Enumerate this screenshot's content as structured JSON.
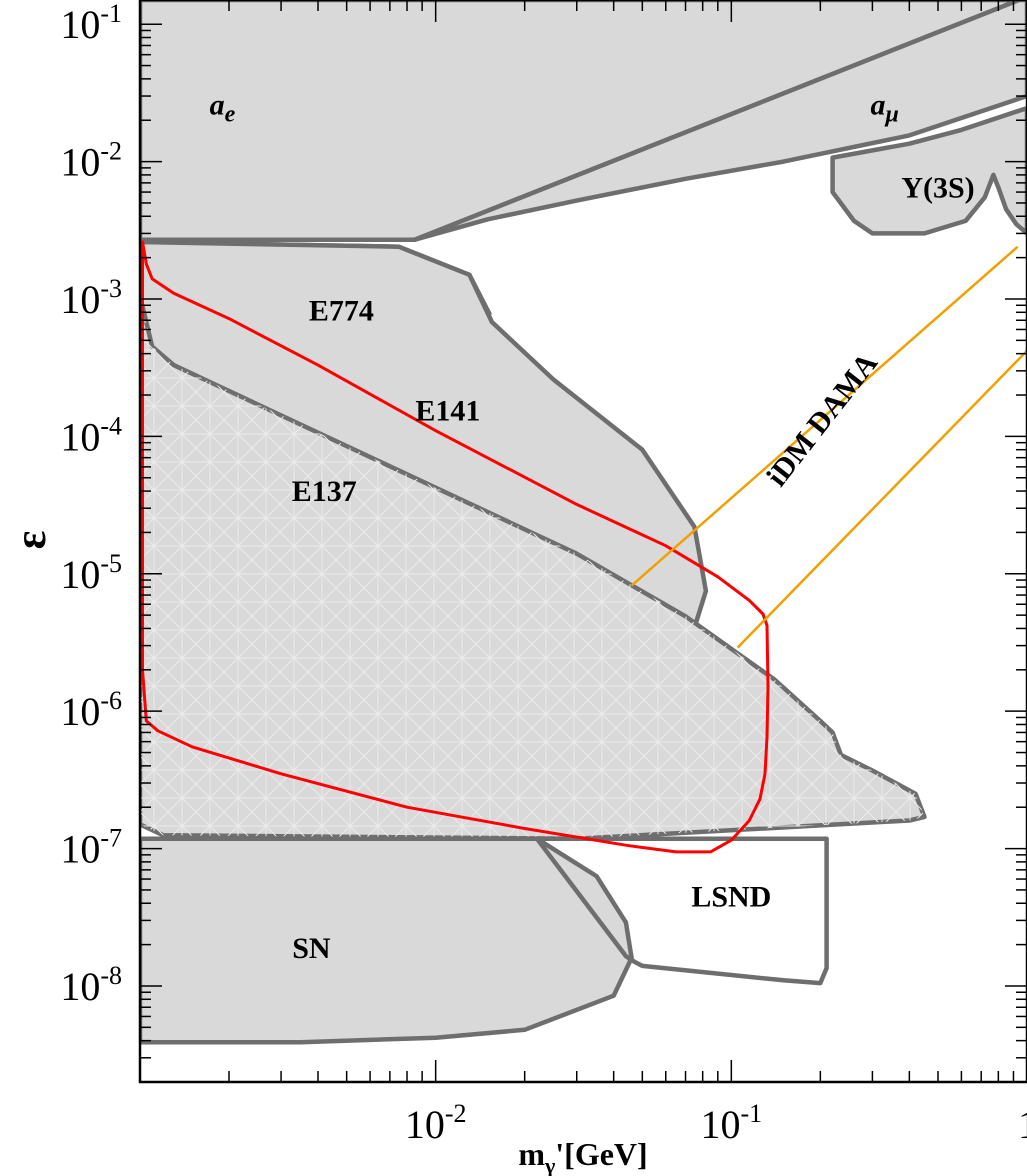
{
  "chart_data": {
    "type": "area",
    "xlabel": "m",
    "xlabel_sub": "γ",
    "xlabel_tail": "'[GeV]",
    "ylabel": "ε",
    "xscale": "log",
    "yscale": "log",
    "xlim": [
      0.001,
      1
    ],
    "ylim": [
      2e-09,
      0.15
    ],
    "x_ticks": [
      {
        "value": 0.01,
        "base": "10",
        "exp": "-2"
      },
      {
        "value": 0.1,
        "base": "10",
        "exp": "-1"
      },
      {
        "value": 1,
        "base": "1",
        "exp": ""
      }
    ],
    "y_ticks": [
      {
        "value": 0.1,
        "base": "10",
        "exp": "-1"
      },
      {
        "value": 0.01,
        "base": "10",
        "exp": "-2"
      },
      {
        "value": 0.001,
        "base": "10",
        "exp": "-3"
      },
      {
        "value": 0.0001,
        "base": "10",
        "exp": "-4"
      },
      {
        "value": 1e-05,
        "base": "10",
        "exp": "-5"
      },
      {
        "value": 1e-06,
        "base": "10",
        "exp": "-6"
      },
      {
        "value": 1e-07,
        "base": "10",
        "exp": "-7"
      },
      {
        "value": 1e-08,
        "base": "10",
        "exp": "-8"
      }
    ],
    "colors": {
      "excluded_fill": "#d9d9d9",
      "excluded_stroke": "#6e6e6e",
      "projection": "#ff0000",
      "idm_band": "#f0a000"
    },
    "regions": [
      {
        "name": "ae",
        "label": "a",
        "label_sub": "e",
        "filled": true,
        "points": [
          [
            0.001,
            0.15
          ],
          [
            0.94,
            0.15
          ],
          [
            0.0085,
            0.0027
          ],
          [
            0.001,
            0.0027
          ]
        ]
      },
      {
        "name": "amu",
        "label": "a",
        "label_sub": "μ",
        "filled": true,
        "points": [
          [
            0.94,
            0.15
          ],
          [
            1,
            0.15
          ],
          [
            1,
            0.03
          ],
          [
            0.4,
            0.0155
          ],
          [
            0.15,
            0.01
          ],
          [
            0.07,
            0.0075
          ],
          [
            0.03,
            0.0052
          ],
          [
            0.015,
            0.0038
          ],
          [
            0.0085,
            0.0027
          ]
        ]
      },
      {
        "name": "upsilon",
        "label": "Υ(3S)",
        "filled": true,
        "points": [
          [
            0.22,
            0.0107
          ],
          [
            0.22,
            0.006
          ],
          [
            0.26,
            0.0037
          ],
          [
            0.3,
            0.003
          ],
          [
            0.45,
            0.003
          ],
          [
            0.62,
            0.0037
          ],
          [
            0.72,
            0.0055
          ],
          [
            0.77,
            0.008
          ],
          [
            0.8,
            0.0065
          ],
          [
            0.85,
            0.0045
          ],
          [
            0.92,
            0.0035
          ],
          [
            1,
            0.003
          ],
          [
            1,
            0.0245
          ],
          [
            0.6,
            0.017
          ],
          [
            0.4,
            0.0135
          ],
          [
            0.22,
            0.0107
          ]
        ]
      },
      {
        "name": "e774",
        "label": "E774",
        "filled": true,
        "points": [
          [
            0.001,
            0.0026
          ],
          [
            0.0075,
            0.0024
          ],
          [
            0.013,
            0.0015
          ],
          [
            0.0152,
            0.00078
          ],
          [
            0.0135,
            0.00045
          ],
          [
            0.008,
            0.00028
          ],
          [
            0.004,
            0.00024
          ],
          [
            0.002,
            0.00026
          ],
          [
            0.001,
            0.00032
          ]
        ]
      },
      {
        "name": "e141",
        "label": "E141",
        "filled": true,
        "points": [
          [
            0.001,
            0.0026
          ],
          [
            0.0075,
            0.0024
          ],
          [
            0.013,
            0.0015
          ],
          [
            0.0155,
            0.00068
          ],
          [
            0.025,
            0.00026
          ],
          [
            0.05,
            8e-05
          ],
          [
            0.075,
            2.2e-05
          ],
          [
            0.082,
            7.5e-06
          ],
          [
            0.07,
            2.5e-06
          ],
          [
            0.055,
            1.6e-06
          ],
          [
            0.045,
            1.1e-06
          ],
          [
            0.001,
            1.1e-06
          ]
        ]
      },
      {
        "name": "e137",
        "label": "E137",
        "filled": true,
        "points": [
          [
            0.001,
            0.00105
          ],
          [
            0.0011,
            0.00045
          ],
          [
            0.0013,
            0.00033
          ],
          [
            0.03,
            1.4e-05
          ],
          [
            0.07,
            4.9e-06
          ],
          [
            0.14,
            1.7e-06
          ],
          [
            0.2,
            8.5e-07
          ],
          [
            0.22,
            7e-07
          ],
          [
            0.235,
            4.8e-07
          ],
          [
            0.3,
            3.7e-07
          ],
          [
            0.42,
            2.5e-07
          ],
          [
            0.45,
            1.7e-07
          ],
          [
            0.4,
            1.6e-07
          ],
          [
            0.03,
            1.18e-07
          ],
          [
            0.0012,
            1.25e-07
          ],
          [
            0.001,
            1.5e-07
          ]
        ]
      },
      {
        "name": "lsnd",
        "label": "LSND",
        "filled": false,
        "points": [
          [
            0.022,
            1.18e-07
          ],
          [
            0.21,
            1.18e-07
          ],
          [
            0.21,
            1.35e-08
          ],
          [
            0.2,
            1.05e-08
          ],
          [
            0.15,
            1.1e-08
          ],
          [
            0.05,
            1.4e-08
          ],
          [
            0.047,
            1.5e-08
          ],
          [
            0.044,
            1.65e-08
          ]
        ]
      },
      {
        "name": "sn",
        "label": "SN",
        "filled": true,
        "points": [
          [
            0.001,
            1.18e-07
          ],
          [
            0.022,
            1.18e-07
          ],
          [
            0.035,
            6.3e-08
          ],
          [
            0.044,
            2.9e-08
          ],
          [
            0.046,
            1.6e-08
          ],
          [
            0.04,
            8.5e-09
          ],
          [
            0.02,
            4.8e-09
          ],
          [
            0.01,
            4.2e-09
          ],
          [
            0.0035,
            3.9e-09
          ],
          [
            0.001,
            3.9e-09
          ]
        ]
      }
    ],
    "series": [
      {
        "name": "red",
        "type": "line",
        "points": [
          [
            0.00102,
            2e-06
          ],
          [
            0.00102,
            0.0026
          ],
          [
            0.00105,
            0.0018
          ],
          [
            0.0011,
            0.0014
          ],
          [
            0.0013,
            0.0011
          ],
          [
            0.002,
            0.00072
          ],
          [
            0.004,
            0.00033
          ],
          [
            0.01,
            0.00011
          ],
          [
            0.03,
            3.2e-05
          ],
          [
            0.06,
            1.6e-05
          ],
          [
            0.09,
            9.5e-06
          ],
          [
            0.115,
            6.4e-06
          ],
          [
            0.128,
            5.1e-06
          ],
          [
            0.132,
            4.2e-06
          ],
          [
            0.133,
            1.5e-06
          ],
          [
            0.132,
            6.5e-07
          ],
          [
            0.13,
            3.5e-07
          ],
          [
            0.125,
            2.3e-07
          ],
          [
            0.115,
            1.6e-07
          ],
          [
            0.1,
            1.15e-07
          ],
          [
            0.085,
            9.45e-08
          ],
          [
            0.065,
            9.45e-08
          ],
          [
            0.045,
            1.05e-07
          ],
          [
            0.02,
            1.4e-07
          ],
          [
            0.008,
            2e-07
          ],
          [
            0.003,
            3.5e-07
          ],
          [
            0.0015,
            5.5e-07
          ],
          [
            0.00115,
            7.2e-07
          ],
          [
            0.00105,
            8.5e-07
          ],
          [
            0.00102,
            2e-06
          ]
        ]
      },
      {
        "name": "idm-lower",
        "type": "line",
        "points": [
          [
            0.046,
            8.2e-06
          ],
          [
            0.93,
            0.0024
          ]
        ]
      },
      {
        "name": "idm-upper",
        "type": "line",
        "points": [
          [
            0.105,
            2.9e-06
          ],
          [
            1,
            0.00042
          ]
        ]
      }
    ],
    "band_label": "iDM DAMA"
  }
}
